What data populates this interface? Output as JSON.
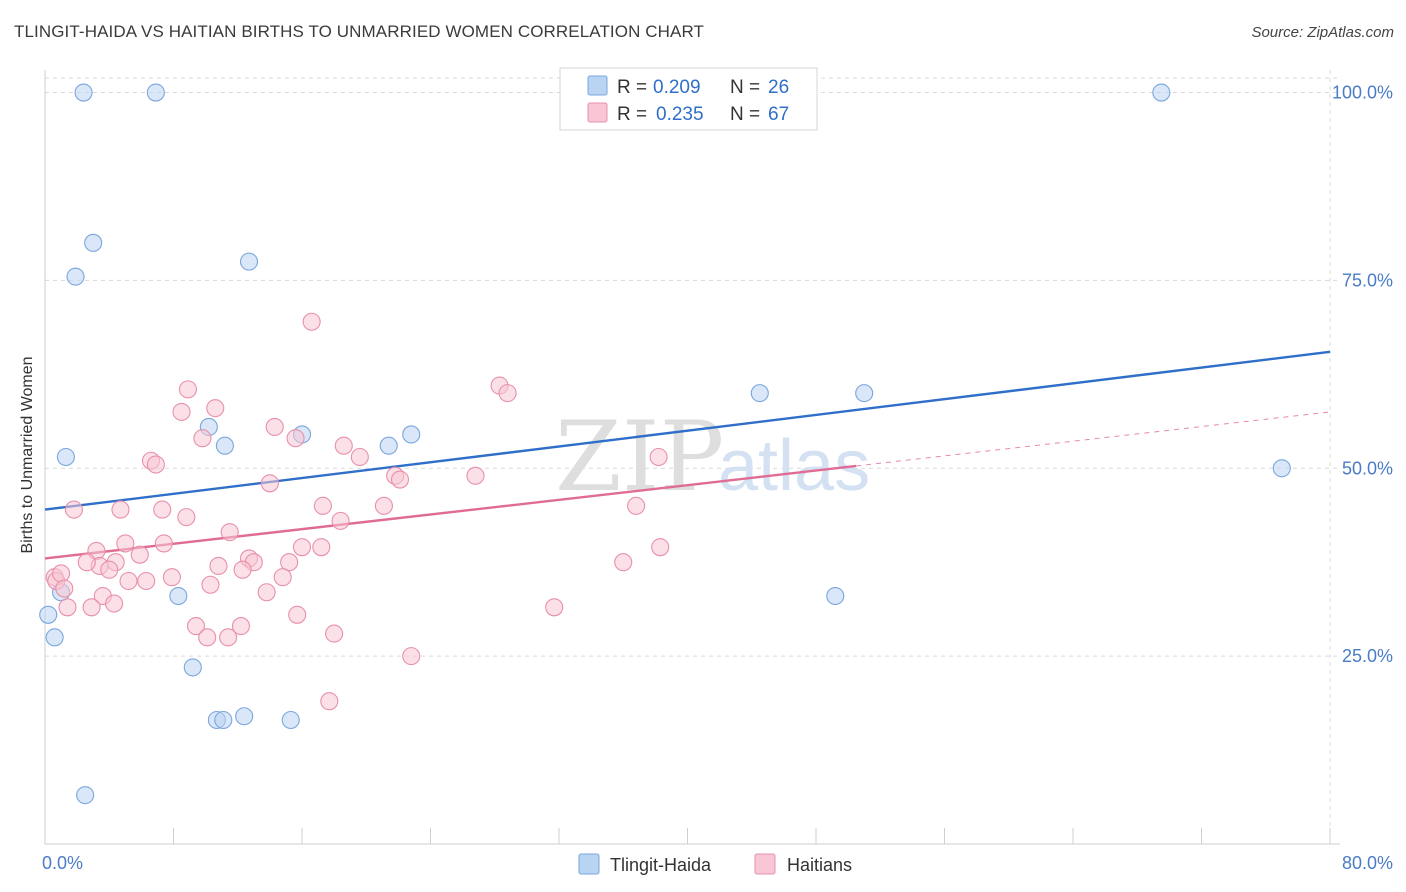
{
  "header": {
    "title": "TLINGIT-HAIDA VS HAITIAN BIRTHS TO UNMARRIED WOMEN CORRELATION CHART",
    "source": "Source: ZipAtlas.com"
  },
  "watermark": {
    "zip": "ZIP",
    "atlas": "atlas"
  },
  "colors": {
    "blue_fill": "#b9d3f3",
    "blue_stroke": "#7aa6dd",
    "blue_line": "#2f6fc9",
    "pink_fill": "#f8c6d4",
    "pink_stroke": "#e890aa",
    "pink_line": "#e06c93",
    "grid": "#d9d9d9",
    "tick_text": "#4a7cc6",
    "value_text": "#2f6fc9"
  },
  "chart_data": {
    "type": "scatter",
    "title": "TLINGIT-HAIDA VS HAITIAN BIRTHS TO UNMARRIED WOMEN CORRELATION CHART",
    "xlabel": "",
    "ylabel": "Births to Unmarried Women",
    "xlim": [
      0,
      80
    ],
    "ylim": [
      0,
      103
    ],
    "x_tick_labels": [
      {
        "value": 0,
        "label": "0.0%"
      },
      {
        "value": 80,
        "label": "80.0%"
      }
    ],
    "y_tick_labels": [
      {
        "value": 25,
        "label": "25.0%"
      },
      {
        "value": 50,
        "label": "50.0%"
      },
      {
        "value": 75,
        "label": "75.0%"
      },
      {
        "value": 100,
        "label": "100.0%"
      }
    ],
    "grid": true,
    "legend_position": "top-center",
    "legend": [
      {
        "r_label": "R =",
        "r_value": "0.209",
        "n_label": "N =",
        "n_value": "26"
      },
      {
        "r_label": "R =",
        "r_value": "0.235",
        "n_label": "N =",
        "n_value": "67"
      }
    ],
    "series": [
      {
        "name": "Tlingit-Haida",
        "color": "blue",
        "trend": {
          "x0": 0,
          "y0": 44.5,
          "x1": 80,
          "y1": 65.5,
          "solid_to": 80
        },
        "points": [
          [
            2.4,
            100
          ],
          [
            6.9,
            100
          ],
          [
            69.5,
            100
          ],
          [
            3.0,
            80
          ],
          [
            1.9,
            75.5
          ],
          [
            12.7,
            77.5
          ],
          [
            1.3,
            51.5
          ],
          [
            10.2,
            55.5
          ],
          [
            11.2,
            53
          ],
          [
            16,
            54.5
          ],
          [
            21.4,
            53
          ],
          [
            22.8,
            54.5
          ],
          [
            44.5,
            60
          ],
          [
            51,
            60
          ],
          [
            77,
            50
          ],
          [
            0.2,
            30.5
          ],
          [
            0.6,
            27.5
          ],
          [
            1.0,
            33.5
          ],
          [
            8.3,
            33
          ],
          [
            9.2,
            23.5
          ],
          [
            10.7,
            16.5
          ],
          [
            11.1,
            16.5
          ],
          [
            12.4,
            17
          ],
          [
            15.3,
            16.5
          ],
          [
            49.2,
            33
          ],
          [
            2.5,
            6.5
          ]
        ]
      },
      {
        "name": "Haitians",
        "color": "pink",
        "trend": {
          "x0": 0,
          "y0": 38,
          "x1": 80,
          "y1": 57.5,
          "solid_to": 50.5
        },
        "points": [
          [
            16.6,
            69.5
          ],
          [
            28.3,
            61
          ],
          [
            28.8,
            60
          ],
          [
            8.9,
            60.5
          ],
          [
            8.5,
            57.5
          ],
          [
            10.6,
            58
          ],
          [
            14.3,
            55.5
          ],
          [
            9.8,
            54
          ],
          [
            15.6,
            54
          ],
          [
            18.6,
            53
          ],
          [
            6.6,
            51
          ],
          [
            6.9,
            50.5
          ],
          [
            19.6,
            51.5
          ],
          [
            21.8,
            49
          ],
          [
            22.1,
            48.5
          ],
          [
            26.8,
            49
          ],
          [
            14,
            48
          ],
          [
            38.2,
            51.5
          ],
          [
            1.8,
            44.5
          ],
          [
            4.7,
            44.5
          ],
          [
            7.3,
            44.5
          ],
          [
            8.8,
            43.5
          ],
          [
            17.3,
            45
          ],
          [
            18.4,
            43
          ],
          [
            21.1,
            45
          ],
          [
            36.8,
            45
          ],
          [
            11.5,
            41.5
          ],
          [
            5.0,
            40
          ],
          [
            7.4,
            40
          ],
          [
            3.2,
            39
          ],
          [
            5.9,
            38.5
          ],
          [
            3.4,
            37
          ],
          [
            4.4,
            37.5
          ],
          [
            2.6,
            37.5
          ],
          [
            4.0,
            36.5
          ],
          [
            10.8,
            37
          ],
          [
            12.7,
            38
          ],
          [
            13,
            37.5
          ],
          [
            15.2,
            37.5
          ],
          [
            16,
            39.5
          ],
          [
            17.2,
            39.5
          ],
          [
            36,
            37.5
          ],
          [
            38.3,
            39.5
          ],
          [
            12.3,
            36.5
          ],
          [
            0.6,
            35.5
          ],
          [
            0.7,
            35
          ],
          [
            1.0,
            36
          ],
          [
            1.2,
            34
          ],
          [
            5.2,
            35
          ],
          [
            6.3,
            35
          ],
          [
            7.9,
            35.5
          ],
          [
            10.3,
            34.5
          ],
          [
            13.8,
            33.5
          ],
          [
            14.8,
            35.5
          ],
          [
            3.6,
            33
          ],
          [
            4.3,
            32
          ],
          [
            1.4,
            31.5
          ],
          [
            2.9,
            31.5
          ],
          [
            15.7,
            30.5
          ],
          [
            31.7,
            31.5
          ],
          [
            9.4,
            29
          ],
          [
            10.1,
            27.5
          ],
          [
            11.4,
            27.5
          ],
          [
            12.2,
            29
          ],
          [
            18.0,
            28
          ],
          [
            22.8,
            25
          ],
          [
            17.7,
            19
          ]
        ]
      }
    ],
    "legend_entries": [
      "Tlingit-Haida",
      "Haitians"
    ]
  }
}
